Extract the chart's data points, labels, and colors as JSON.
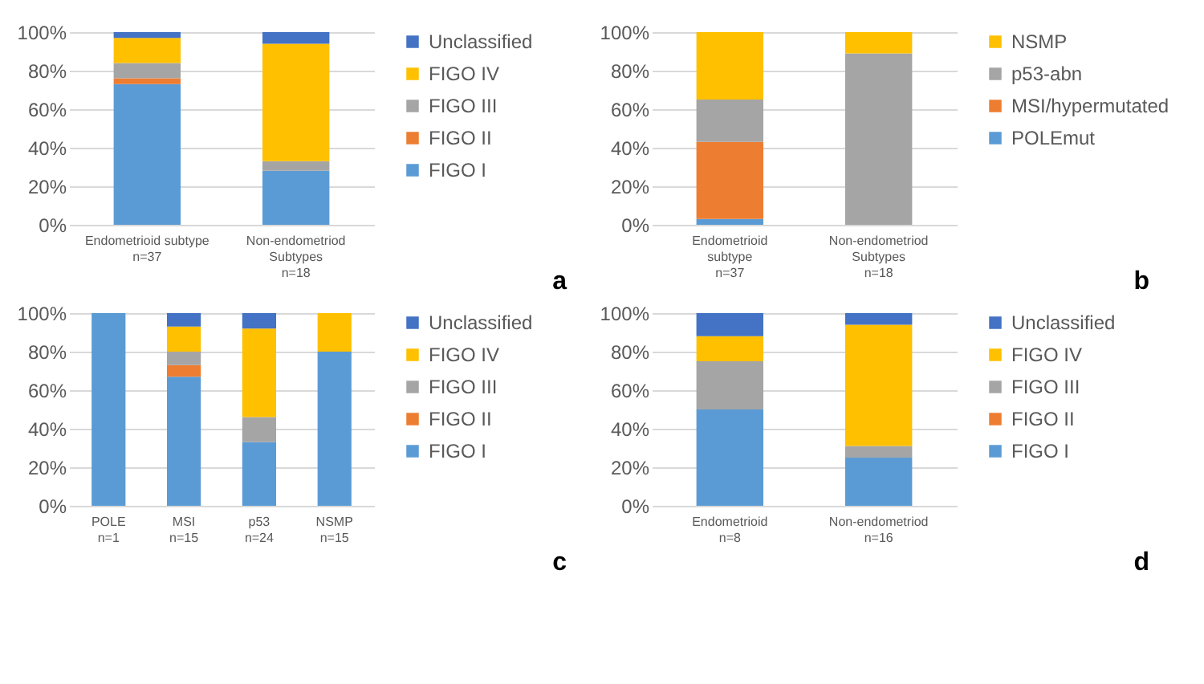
{
  "chart_data": [
    {
      "type": "bar",
      "stacked": true,
      "categories": [
        "Endometrioid subtype\nn=37",
        "Non-endometriod\nSubtypes\nn=18"
      ],
      "series": [
        {
          "name": "FIGO I",
          "color": "#5b9bd5",
          "values": [
            73,
            28
          ]
        },
        {
          "name": "FIGO II",
          "color": "#ed7d31",
          "values": [
            3,
            0
          ]
        },
        {
          "name": "FIGO III",
          "color": "#a5a5a5",
          "values": [
            8,
            5
          ]
        },
        {
          "name": "FIGO IV",
          "color": "#ffc000",
          "values": [
            13,
            61
          ]
        },
        {
          "name": "Unclassified",
          "color": "#4472c4",
          "values": [
            3,
            6
          ]
        }
      ],
      "ylim": [
        0,
        100
      ],
      "yticks": [
        {
          "value": 0,
          "label": "0%"
        },
        {
          "value": 20,
          "label": "20%"
        },
        {
          "value": 40,
          "label": "40%"
        },
        {
          "value": 60,
          "label": "60%"
        },
        {
          "value": 80,
          "label": "80%"
        },
        {
          "value": 100,
          "label": "100%"
        }
      ],
      "grid": "y",
      "legend": "right",
      "annotations": [
        "a"
      ]
    },
    {
      "type": "bar",
      "stacked": true,
      "categories": [
        "Endometrioid\nsubtype\nn=37",
        "Non-endometriod\nSubtypes\nn=18"
      ],
      "series": [
        {
          "name": "POLEmut",
          "color": "#5b9bd5",
          "values": [
            3,
            0
          ]
        },
        {
          "name": "MSI/hypermutated",
          "color": "#ed7d31",
          "values": [
            40,
            0
          ]
        },
        {
          "name": "p53-abn",
          "color": "#a5a5a5",
          "values": [
            22,
            89
          ]
        },
        {
          "name": "NSMP",
          "color": "#ffc000",
          "values": [
            35,
            11
          ]
        }
      ],
      "ylim": [
        0,
        100
      ],
      "yticks": [
        {
          "value": 0,
          "label": "0%"
        },
        {
          "value": 20,
          "label": "20%"
        },
        {
          "value": 40,
          "label": "40%"
        },
        {
          "value": 60,
          "label": "60%"
        },
        {
          "value": 80,
          "label": "80%"
        },
        {
          "value": 100,
          "label": "100%"
        }
      ],
      "grid": "y",
      "legend": "right",
      "annotations": [
        "b"
      ]
    },
    {
      "type": "bar",
      "stacked": true,
      "categories": [
        "POLE\nn=1",
        "MSI\nn=15",
        "p53\nn=24",
        "NSMP\nn=15"
      ],
      "series": [
        {
          "name": "FIGO I",
          "color": "#5b9bd5",
          "values": [
            100,
            67,
            33,
            80
          ]
        },
        {
          "name": "FIGO II",
          "color": "#ed7d31",
          "values": [
            0,
            6,
            0,
            0
          ]
        },
        {
          "name": "FIGO III",
          "color": "#a5a5a5",
          "values": [
            0,
            7,
            13,
            0
          ]
        },
        {
          "name": "FIGO IV",
          "color": "#ffc000",
          "values": [
            0,
            13,
            46,
            20
          ]
        },
        {
          "name": "Unclassified",
          "color": "#4472c4",
          "values": [
            0,
            7,
            8,
            0
          ]
        }
      ],
      "ylim": [
        0,
        100
      ],
      "yticks": [
        {
          "value": 0,
          "label": "0%"
        },
        {
          "value": 20,
          "label": "20%"
        },
        {
          "value": 40,
          "label": "40%"
        },
        {
          "value": 60,
          "label": "60%"
        },
        {
          "value": 80,
          "label": "80%"
        },
        {
          "value": 100,
          "label": "100%"
        }
      ],
      "grid": "y",
      "legend": "right",
      "annotations": [
        "c"
      ]
    },
    {
      "type": "bar",
      "stacked": true,
      "categories": [
        "Endometrioid\nn=8",
        "Non-endometriod\nn=16"
      ],
      "series": [
        {
          "name": "FIGO I",
          "color": "#5b9bd5",
          "values": [
            50,
            25
          ]
        },
        {
          "name": "FIGO II",
          "color": "#ed7d31",
          "values": [
            0,
            0
          ]
        },
        {
          "name": "FIGO III",
          "color": "#a5a5a5",
          "values": [
            25,
            6
          ]
        },
        {
          "name": "FIGO IV",
          "color": "#ffc000",
          "values": [
            13,
            63
          ]
        },
        {
          "name": "Unclassified",
          "color": "#4472c4",
          "values": [
            12,
            6
          ]
        }
      ],
      "ylim": [
        0,
        100
      ],
      "yticks": [
        {
          "value": 0,
          "label": "0%"
        },
        {
          "value": 20,
          "label": "20%"
        },
        {
          "value": 40,
          "label": "40%"
        },
        {
          "value": 60,
          "label": "60%"
        },
        {
          "value": 80,
          "label": "80%"
        },
        {
          "value": 100,
          "label": "100%"
        }
      ],
      "grid": "y",
      "legend": "right",
      "annotations": [
        "d"
      ]
    }
  ]
}
